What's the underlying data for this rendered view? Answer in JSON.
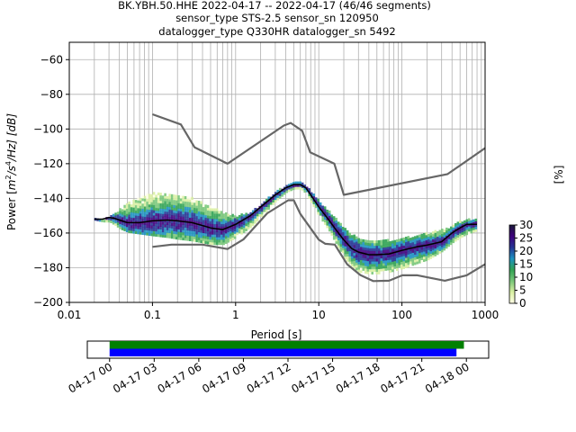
{
  "chart_data": [
    {
      "type": "heatmap",
      "title_lines": [
        "BK.YBH.50.HHE   2022-04-17 -- 2022-04-17  (46/46 segments)",
        "sensor_type STS-2.5 sensor_sn 120950",
        "datalogger_type Q330HR datalogger_sn 5492"
      ],
      "xlabel": "Period [s]",
      "ylabel_parts": {
        "prefix": "Power [",
        "m": "m",
        "two": "2",
        "s1": "/s",
        "four": "4",
        "tail": "/Hz] [dB]"
      },
      "xscale": "log",
      "xlim": [
        0.01,
        1000
      ],
      "ylim": [
        -200,
        -50
      ],
      "xticks": [
        {
          "value": 0.01,
          "label": "0.01"
        },
        {
          "value": 0.1,
          "label": "0.1"
        },
        {
          "value": 1,
          "label": "1"
        },
        {
          "value": 10,
          "label": "10"
        },
        {
          "value": 100,
          "label": "100"
        },
        {
          "value": 1000,
          "label": "1000"
        }
      ],
      "yticks": [
        {
          "value": -60,
          "label": "−60"
        },
        {
          "value": -80,
          "label": "−80"
        },
        {
          "value": -100,
          "label": "−100"
        },
        {
          "value": -120,
          "label": "−120"
        },
        {
          "value": -140,
          "label": "−140"
        },
        {
          "value": -160,
          "label": "−160"
        },
        {
          "value": -180,
          "label": "−180"
        },
        {
          "value": -200,
          "label": "−200"
        }
      ],
      "grid": true,
      "colorbar": {
        "label": "[%]",
        "range": [
          0,
          30
        ],
        "ticks": [
          {
            "value": 0,
            "label": "0"
          },
          {
            "value": 5,
            "label": "5"
          },
          {
            "value": 10,
            "label": "10"
          },
          {
            "value": 15,
            "label": "15"
          },
          {
            "value": 20,
            "label": "20"
          },
          {
            "value": 25,
            "label": "25"
          },
          {
            "value": 30,
            "label": "30"
          }
        ],
        "colors": [
          "#ffffe5",
          "#d9f0a3",
          "#78c679",
          "#31a354",
          "#1d91c0",
          "#253494",
          "#3f007d",
          "#1a1a3a"
        ]
      },
      "series": [
        {
          "role": "high_noise_model",
          "color": "#666666",
          "x": [
            0.1,
            0.22,
            0.32,
            0.8,
            3.8,
            4.6,
            6.3,
            7.9,
            15.4,
            20,
            354.8,
            1000
          ],
          "y": [
            -91.5,
            -97.4,
            -110.5,
            -120,
            -98,
            -96.5,
            -101,
            -113.5,
            -120,
            -138,
            -126,
            -111
          ]
        },
        {
          "role": "low_noise_model",
          "color": "#666666",
          "x": [
            0.1,
            0.17,
            0.4,
            0.8,
            1.24,
            2.4,
            4.3,
            5,
            6,
            10,
            12,
            15.6,
            21.9,
            31.6,
            45,
            70,
            101,
            154,
            328,
            600,
            1000
          ],
          "y": [
            -168,
            -166.7,
            -166.7,
            -169.2,
            -163.7,
            -148.6,
            -141.1,
            -141.1,
            -149,
            -163.8,
            -166.2,
            -166.7,
            -178,
            -184.2,
            -187.7,
            -187.5,
            -184.4,
            -184.4,
            -187.5,
            -184.4,
            -178
          ]
        },
        {
          "role": "mode",
          "color": "#000000",
          "x": [
            0.02,
            0.025,
            0.03,
            0.035,
            0.04,
            0.05,
            0.07,
            0.1,
            0.15,
            0.2,
            0.3,
            0.5,
            0.7,
            1,
            1.5,
            2,
            3,
            4,
            5,
            6,
            7,
            8,
            10,
            13,
            16,
            20,
            25,
            30,
            40,
            50,
            70,
            100,
            150,
            200,
            300,
            400,
            500,
            600,
            800
          ],
          "y": [
            -152,
            -152,
            -151,
            -151.5,
            -152.5,
            -154,
            -154,
            -153,
            -152.5,
            -153,
            -154,
            -157,
            -158,
            -155,
            -150,
            -145,
            -138,
            -134,
            -132,
            -132,
            -134,
            -138,
            -145,
            -152,
            -158,
            -164,
            -169,
            -171,
            -172.5,
            -172.5,
            -172,
            -170,
            -168,
            -167,
            -165,
            -160,
            -157,
            -155,
            -155
          ]
        }
      ],
      "density_bands": {
        "x": [
          0.02,
          0.025,
          0.03,
          0.035,
          0.04,
          0.05,
          0.07,
          0.1,
          0.15,
          0.2,
          0.3,
          0.5,
          0.7,
          1,
          1.5,
          2,
          3,
          4,
          5,
          6,
          7,
          8,
          10,
          13,
          16,
          20,
          25,
          30,
          40,
          50,
          70,
          100,
          150,
          200,
          300,
          400,
          500,
          600,
          800
        ],
        "upper": [
          -152,
          -152,
          -150,
          -148,
          -146,
          -142,
          -139,
          -137,
          -137,
          -138,
          -140,
          -145,
          -148,
          -150,
          -148,
          -143,
          -136,
          -132,
          -131,
          -131,
          -133,
          -136,
          -142,
          -147,
          -152,
          -157,
          -161,
          -163,
          -165,
          -165,
          -164,
          -163,
          -161,
          -160,
          -158,
          -156,
          -153,
          -152,
          -152
        ],
        "lower": [
          -152,
          -153,
          -153,
          -155,
          -157,
          -159,
          -160,
          -161,
          -162,
          -163,
          -164,
          -166,
          -166,
          -162,
          -156,
          -150,
          -141,
          -136,
          -134,
          -134,
          -137,
          -142,
          -150,
          -158,
          -166,
          -174,
          -179,
          -182,
          -183,
          -183,
          -182,
          -180,
          -177,
          -175,
          -170,
          -165,
          -162,
          -160,
          -158
        ]
      }
    },
    {
      "type": "timeline",
      "xlim": [
        "2022-04-16T22:30",
        "2022-04-18T01:30"
      ],
      "xticks": [
        {
          "value": "2022-04-17T00:00",
          "label": "04-17 00"
        },
        {
          "value": "2022-04-17T03:00",
          "label": "04-17 03"
        },
        {
          "value": "2022-04-17T06:00",
          "label": "04-17 06"
        },
        {
          "value": "2022-04-17T09:00",
          "label": "04-17 09"
        },
        {
          "value": "2022-04-17T12:00",
          "label": "04-17 12"
        },
        {
          "value": "2022-04-17T15:00",
          "label": "04-17 15"
        },
        {
          "value": "2022-04-17T18:00",
          "label": "04-17 18"
        },
        {
          "value": "2022-04-17T21:00",
          "label": "04-17 21"
        },
        {
          "value": "2022-04-18T00:00",
          "label": "04-18 00"
        }
      ],
      "bars": [
        {
          "role": "data_coverage",
          "color": "#008000",
          "start": "2022-04-17T00:00",
          "end": "2022-04-17T23:50"
        },
        {
          "role": "psd_segments",
          "color": "#0000ff",
          "start": "2022-04-17T00:00",
          "end": "2022-04-17T23:20"
        }
      ]
    }
  ]
}
